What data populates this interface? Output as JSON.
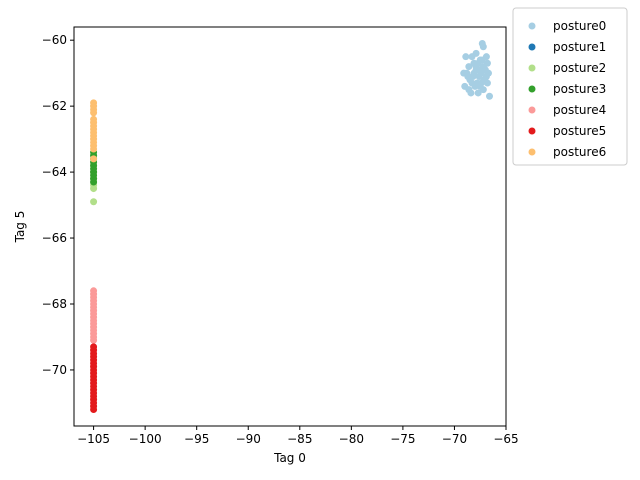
{
  "chart_data": {
    "type": "scatter",
    "title": "",
    "xlabel": "Tag 0",
    "ylabel": "Tag 5",
    "xlim": [
      -106.9,
      -65.0
    ],
    "ylim": [
      -71.7,
      -59.6
    ],
    "xticks": [
      -105,
      -100,
      -95,
      -90,
      -85,
      -80,
      -75,
      -70,
      -65
    ],
    "yticks": [
      -70,
      -68,
      -66,
      -64,
      -62,
      -60
    ],
    "grid": false,
    "legend_position": "outside-top-right",
    "series": [
      {
        "name": "posture0",
        "color": "#a6cee3",
        "points": [
          [
            -67.3,
            -60.1
          ],
          [
            -67.2,
            -60.2
          ],
          [
            -67.9,
            -60.4
          ],
          [
            -68.3,
            -60.5
          ],
          [
            -68.9,
            -60.5
          ],
          [
            -66.9,
            -60.5
          ],
          [
            -67.5,
            -60.6
          ],
          [
            -68.1,
            -60.7
          ],
          [
            -67.7,
            -60.7
          ],
          [
            -66.8,
            -60.7
          ],
          [
            -68.6,
            -60.8
          ],
          [
            -67.2,
            -60.8
          ],
          [
            -67.9,
            -60.9
          ],
          [
            -66.7,
            -61.0
          ],
          [
            -69.1,
            -61.0
          ],
          [
            -68.8,
            -61.0
          ],
          [
            -67.4,
            -61.0
          ],
          [
            -68.2,
            -61.1
          ],
          [
            -67.6,
            -61.1
          ],
          [
            -66.9,
            -61.1
          ],
          [
            -68.5,
            -61.2
          ],
          [
            -67.1,
            -61.2
          ],
          [
            -67.8,
            -61.3
          ],
          [
            -68.3,
            -61.3
          ],
          [
            -66.8,
            -61.3
          ],
          [
            -69.0,
            -61.4
          ],
          [
            -67.5,
            -61.4
          ],
          [
            -68.0,
            -61.4
          ],
          [
            -68.6,
            -61.5
          ],
          [
            -67.2,
            -61.5
          ],
          [
            -67.7,
            -61.6
          ],
          [
            -68.4,
            -61.6
          ],
          [
            -66.6,
            -61.7
          ],
          [
            -67.9,
            -60.8
          ],
          [
            -67.0,
            -60.9
          ],
          [
            -68.1,
            -61.0
          ],
          [
            -67.4,
            -61.3
          ],
          [
            -68.7,
            -61.1
          ],
          [
            -67.3,
            -60.6
          ],
          [
            -67.6,
            -60.9
          ]
        ]
      },
      {
        "name": "posture1",
        "color": "#1f78b4",
        "points": []
      },
      {
        "name": "posture2",
        "color": "#b2df8a",
        "points": [
          [
            -105,
            -63.6
          ],
          [
            -105,
            -63.8
          ],
          [
            -105,
            -64.0
          ],
          [
            -105,
            -64.2
          ],
          [
            -105,
            -64.3
          ],
          [
            -105,
            -64.4
          ],
          [
            -105,
            -64.5
          ],
          [
            -105,
            -64.9
          ]
        ]
      },
      {
        "name": "posture3",
        "color": "#33a02c",
        "points": [
          [
            -105,
            -63.4
          ],
          [
            -105,
            -63.5
          ],
          [
            -105,
            -63.6
          ],
          [
            -105,
            -63.7
          ],
          [
            -105,
            -63.8
          ],
          [
            -105,
            -63.9
          ],
          [
            -105,
            -64.0
          ],
          [
            -105,
            -64.1
          ],
          [
            -105,
            -64.2
          ],
          [
            -105,
            -64.3
          ]
        ]
      },
      {
        "name": "posture4",
        "color": "#fb9a99",
        "points": [
          [
            -105,
            -67.6
          ],
          [
            -105,
            -67.7
          ],
          [
            -105,
            -67.8
          ],
          [
            -105,
            -67.9
          ],
          [
            -105,
            -68.0
          ],
          [
            -105,
            -68.1
          ],
          [
            -105,
            -68.2
          ],
          [
            -105,
            -68.3
          ],
          [
            -105,
            -68.4
          ],
          [
            -105,
            -68.5
          ],
          [
            -105,
            -68.6
          ],
          [
            -105,
            -68.7
          ],
          [
            -105,
            -68.8
          ],
          [
            -105,
            -68.9
          ],
          [
            -105,
            -69.0
          ],
          [
            -105,
            -69.1
          ]
        ]
      },
      {
        "name": "posture5",
        "color": "#e31a1c",
        "points": [
          [
            -105,
            -69.3
          ],
          [
            -105,
            -69.4
          ],
          [
            -105,
            -69.5
          ],
          [
            -105,
            -69.6
          ],
          [
            -105,
            -69.7
          ],
          [
            -105,
            -69.8
          ],
          [
            -105,
            -69.9
          ],
          [
            -105,
            -70.0
          ],
          [
            -105,
            -70.1
          ],
          [
            -105,
            -70.2
          ],
          [
            -105,
            -70.3
          ],
          [
            -105,
            -70.4
          ],
          [
            -105,
            -70.5
          ],
          [
            -105,
            -70.6
          ],
          [
            -105,
            -70.7
          ],
          [
            -105,
            -70.8
          ],
          [
            -105,
            -70.9
          ],
          [
            -105,
            -71.0
          ],
          [
            -105,
            -71.1
          ],
          [
            -105,
            -71.2
          ]
        ]
      },
      {
        "name": "posture6",
        "color": "#fdbf6f",
        "points": [
          [
            -105,
            -61.9
          ],
          [
            -105,
            -62.0
          ],
          [
            -105,
            -62.1
          ],
          [
            -105,
            -62.2
          ],
          [
            -105,
            -62.4
          ],
          [
            -105,
            -62.5
          ],
          [
            -105,
            -62.6
          ],
          [
            -105,
            -62.7
          ],
          [
            -105,
            -62.8
          ],
          [
            -105,
            -62.9
          ],
          [
            -105,
            -63.0
          ],
          [
            -105,
            -63.1
          ],
          [
            -105,
            -63.2
          ],
          [
            -105,
            -63.3
          ],
          [
            -105,
            -63.6
          ]
        ]
      }
    ]
  }
}
